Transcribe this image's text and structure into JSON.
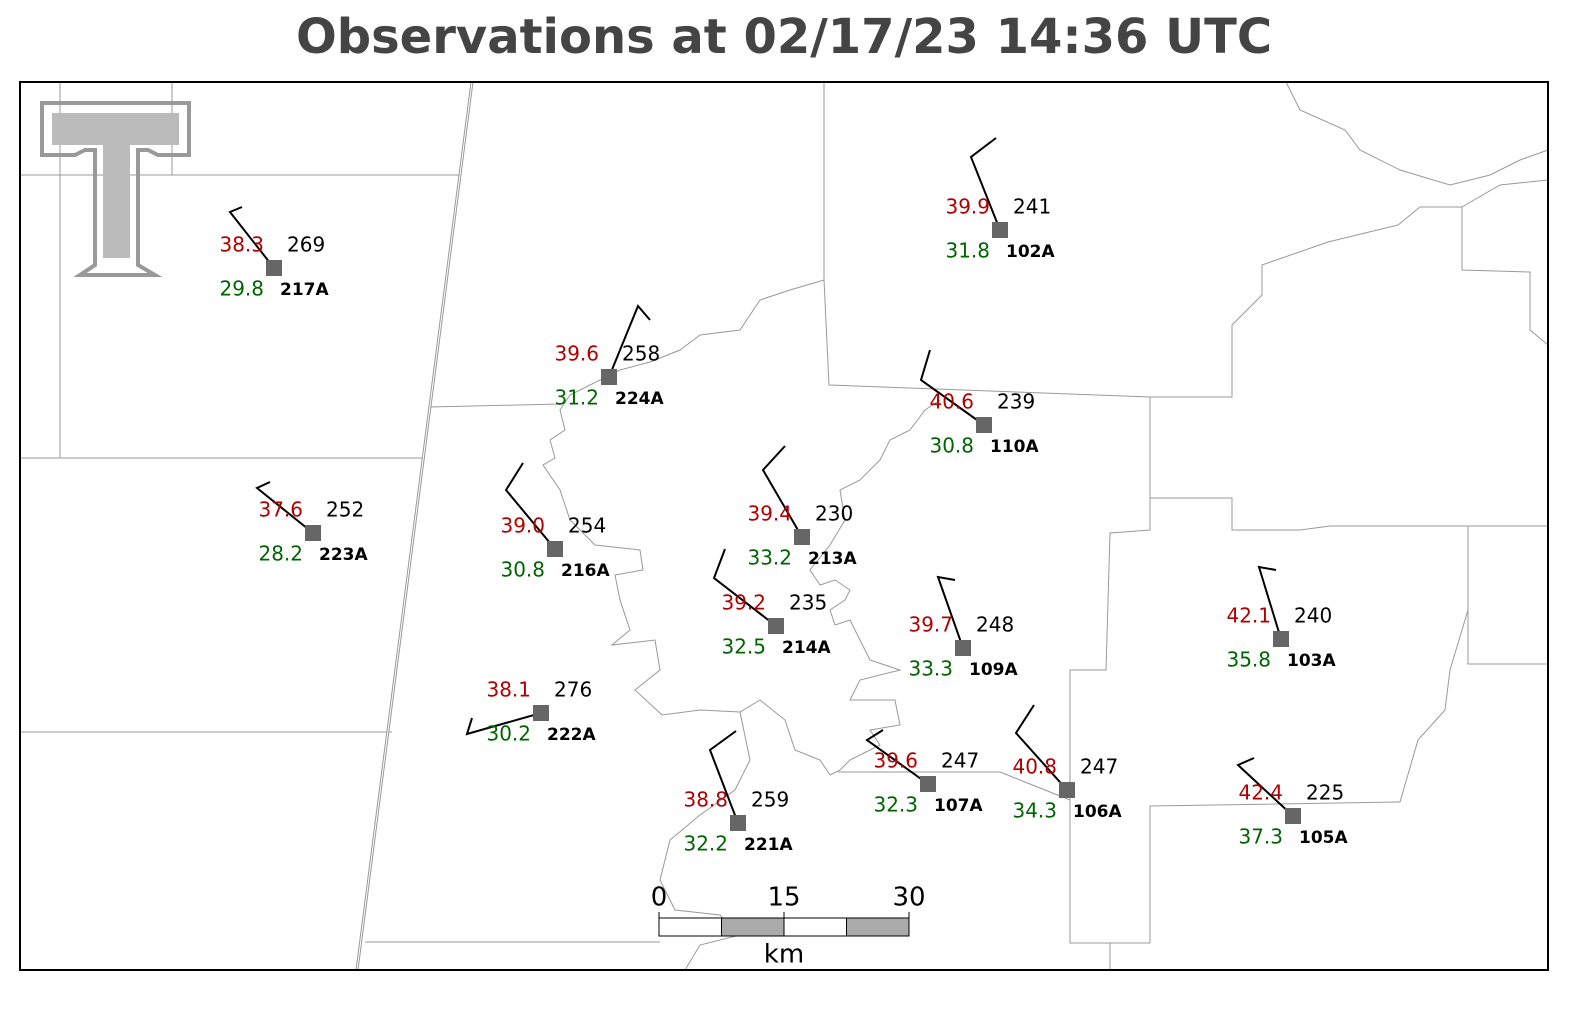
{
  "title": "Observations at 02/17/23 14:36 UTC",
  "stations": [
    {
      "id": "217A",
      "temperature": 38.3,
      "dewpoint": 29.8,
      "value": 269,
      "temperature_label": "38.3",
      "dewpoint_label": "29.8"
    },
    {
      "id": "224A",
      "temperature": 39.6,
      "dewpoint": 31.2,
      "value": 258,
      "temperature_label": "39.6",
      "dewpoint_label": "31.2"
    },
    {
      "id": "102A",
      "temperature": 39.9,
      "dewpoint": 31.8,
      "value": 241,
      "temperature_label": "39.9",
      "dewpoint_label": "31.8"
    },
    {
      "id": "110A",
      "temperature": 40.6,
      "dewpoint": 30.8,
      "value": 239,
      "temperature_label": "40.6",
      "dewpoint_label": "30.8"
    },
    {
      "id": "223A",
      "temperature": 37.6,
      "dewpoint": 28.2,
      "value": 252,
      "temperature_label": "37.6",
      "dewpoint_label": "28.2"
    },
    {
      "id": "216A",
      "temperature": 39.0,
      "dewpoint": 30.8,
      "value": 254,
      "temperature_label": "39.0",
      "dewpoint_label": "30.8"
    },
    {
      "id": "213A",
      "temperature": 39.4,
      "dewpoint": 33.2,
      "value": 230,
      "temperature_label": "39.4",
      "dewpoint_label": "33.2"
    },
    {
      "id": "214A",
      "temperature": 39.2,
      "dewpoint": 32.5,
      "value": 235,
      "temperature_label": "39.2",
      "dewpoint_label": "32.5"
    },
    {
      "id": "109A",
      "temperature": 39.7,
      "dewpoint": 33.3,
      "value": 248,
      "temperature_label": "39.7",
      "dewpoint_label": "33.3"
    },
    {
      "id": "103A",
      "temperature": 42.1,
      "dewpoint": 35.8,
      "value": 240,
      "temperature_label": "42.1",
      "dewpoint_label": "35.8"
    },
    {
      "id": "222A",
      "temperature": 38.1,
      "dewpoint": 30.2,
      "value": 276,
      "temperature_label": "38.1",
      "dewpoint_label": "30.2"
    },
    {
      "id": "221A",
      "temperature": 38.8,
      "dewpoint": 32.2,
      "value": 259,
      "temperature_label": "38.8",
      "dewpoint_label": "32.2"
    },
    {
      "id": "107A",
      "temperature": 39.6,
      "dewpoint": 32.3,
      "value": 247,
      "temperature_label": "39.6",
      "dewpoint_label": "32.3"
    },
    {
      "id": "106A",
      "temperature": 40.8,
      "dewpoint": 34.3,
      "value": 247,
      "temperature_label": "40.8",
      "dewpoint_label": "34.3"
    },
    {
      "id": "105A",
      "temperature": 42.4,
      "dewpoint": 37.3,
      "value": 225,
      "temperature_label": "42.4",
      "dewpoint_label": "37.3"
    }
  ],
  "scale_bar": {
    "ticks": [
      0,
      15,
      30
    ],
    "unit": "km"
  }
}
